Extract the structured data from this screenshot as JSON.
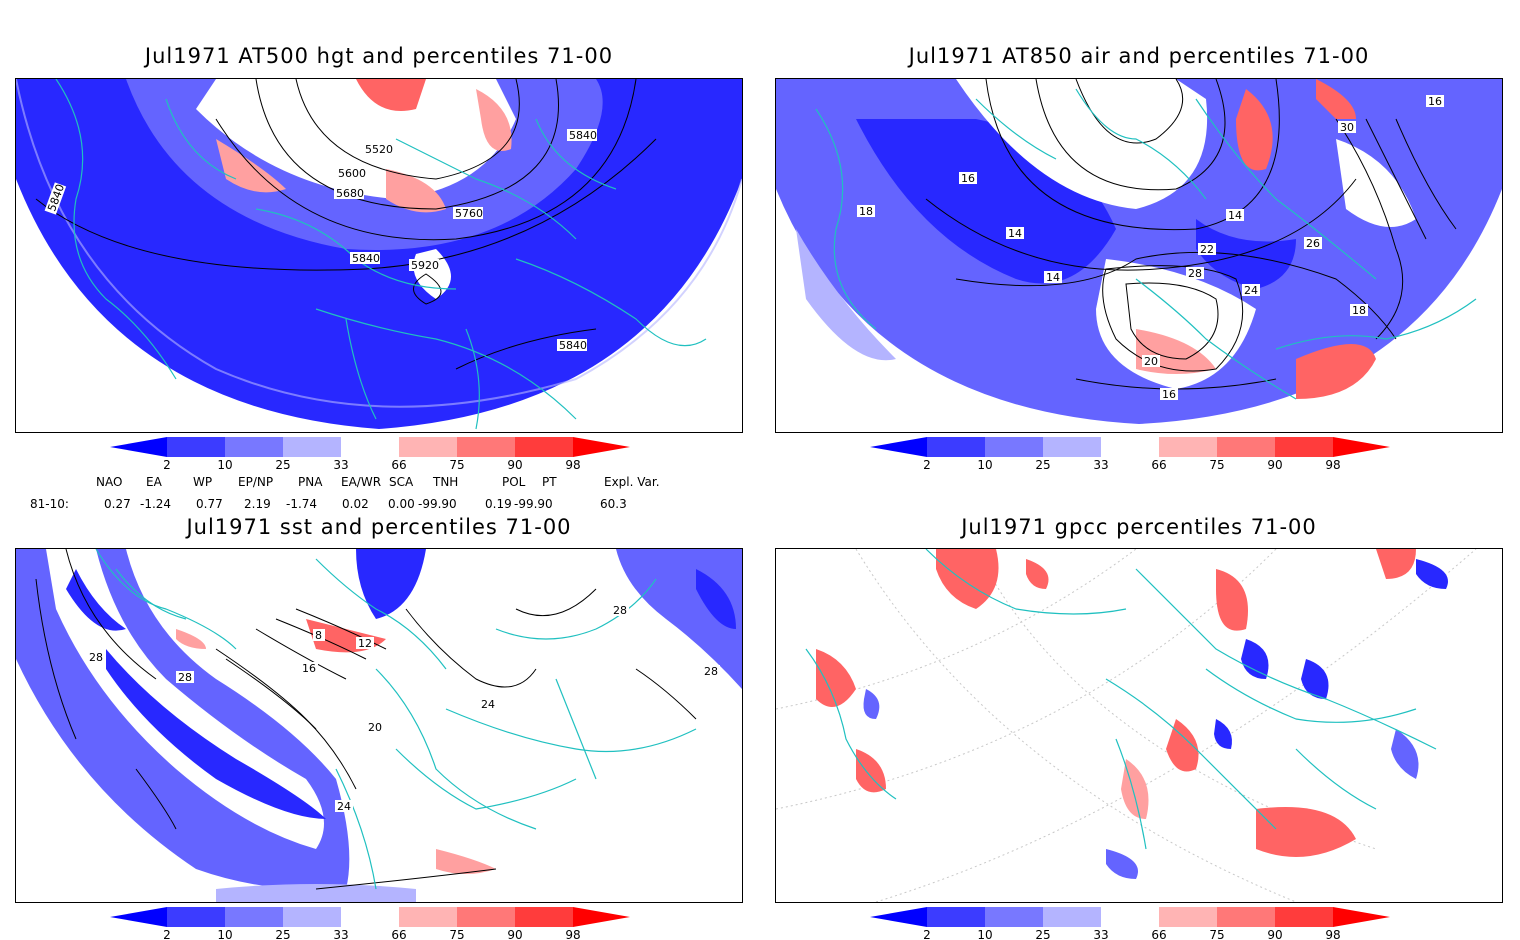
{
  "panels": [
    {
      "title": "Jul1971 AT500 hgt and percentiles 71-00",
      "contour_labels": [
        "5520",
        "5600",
        "5680",
        "5760",
        "5840",
        "5840",
        "5840",
        "5840",
        "5920"
      ]
    },
    {
      "title": "Jul1971 AT850 air and percentiles 71-00",
      "contour_labels": [
        "14",
        "14",
        "14",
        "16",
        "16",
        "16",
        "18",
        "18",
        "20",
        "22",
        "24",
        "26",
        "28",
        "30"
      ]
    },
    {
      "title": "Jul1971 sst and percentiles 71-00",
      "contour_labels": [
        "8",
        "12",
        "16",
        "20",
        "24",
        "24",
        "28",
        "28",
        "28",
        "28"
      ]
    },
    {
      "title": "Jul1971 gpcc percentiles 71-00",
      "contour_labels": []
    }
  ],
  "colorbar": {
    "ticks": [
      "2",
      "10",
      "25",
      "33",
      "66",
      "75",
      "90",
      "98"
    ],
    "colors": [
      "#0000ff",
      "#3c3cff",
      "#7878ff",
      "#b4b4ff",
      "#ffffff",
      "#ffb4b4",
      "#ff7878",
      "#ff3c3c",
      "#ff0000"
    ]
  },
  "indices": {
    "header": [
      "NAO",
      "EA",
      "WP",
      "EP/NP",
      "PNA",
      "EA/WR",
      "SCA",
      "TNH",
      "POL",
      "PT",
      "Expl. Var."
    ],
    "row_label": "81-10:",
    "values": [
      "0.27",
      "-1.24",
      "0.77",
      "2.19",
      "-1.74",
      "0.02",
      "0.00",
      "-99.90",
      "0.19",
      "-99.90",
      "60.3"
    ]
  },
  "colors": {
    "coast": "#20c0c0",
    "blue_dark": "#2828ff",
    "blue_mid": "#6464ff",
    "blue_light": "#a0a0ff",
    "red_light": "#ffa0a0",
    "red_mid": "#ff6464"
  }
}
